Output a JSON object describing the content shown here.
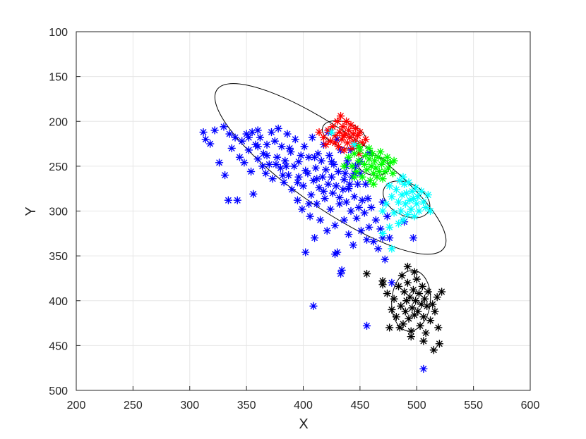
{
  "chart_data": {
    "type": "scatter",
    "title": "",
    "xlabel": "X",
    "ylabel": "Y",
    "xlim": [
      200,
      600
    ],
    "ylim": [
      100,
      500
    ],
    "y_reversed": true,
    "grid": true,
    "marker": "asterisk",
    "xticks": [
      200,
      250,
      300,
      350,
      400,
      450,
      500,
      550,
      600
    ],
    "yticks": [
      100,
      150,
      200,
      250,
      300,
      350,
      400,
      450,
      500
    ],
    "series": [
      {
        "color": "#0000ff",
        "points": [
          [
            312,
            212
          ],
          [
            314,
            220
          ],
          [
            318,
            225
          ],
          [
            322,
            210
          ],
          [
            326,
            246
          ],
          [
            330,
            206
          ],
          [
            331,
            260
          ],
          [
            334,
            288
          ],
          [
            335,
            214
          ],
          [
            337,
            230
          ],
          [
            340,
            218
          ],
          [
            342,
            288
          ],
          [
            344,
            240
          ],
          [
            346,
            222
          ],
          [
            348,
            246
          ],
          [
            350,
            214
          ],
          [
            352,
            232
          ],
          [
            354,
            256
          ],
          [
            355,
            212
          ],
          [
            356,
            281
          ],
          [
            358,
            226
          ],
          [
            360,
            242
          ],
          [
            362,
            218
          ],
          [
            364,
            250
          ],
          [
            365,
            236
          ],
          [
            367,
            258
          ],
          [
            368,
            226
          ],
          [
            370,
            248
          ],
          [
            372,
            212
          ],
          [
            373,
            264
          ],
          [
            375,
            222
          ],
          [
            377,
            240
          ],
          [
            378,
            208
          ],
          [
            380,
            252
          ],
          [
            381,
            228
          ],
          [
            383,
            268
          ],
          [
            384,
            244
          ],
          [
            386,
            214
          ],
          [
            387,
            260
          ],
          [
            389,
            234
          ],
          [
            390,
            276
          ],
          [
            392,
            250
          ],
          [
            393,
            220
          ],
          [
            395,
            288
          ],
          [
            396,
            262
          ],
          [
            398,
            238
          ],
          [
            399,
            298
          ],
          [
            400,
            272
          ],
          [
            401,
            228
          ],
          [
            402,
            346
          ],
          [
            404,
            258
          ],
          [
            405,
            240
          ],
          [
            406,
            306
          ],
          [
            407,
            282
          ],
          [
            408,
            218
          ],
          [
            409,
            266
          ],
          [
            410,
            330
          ],
          [
            411,
            252
          ],
          [
            412,
            292
          ],
          [
            413,
            236
          ],
          [
            414,
            274
          ],
          [
            415,
            310
          ],
          [
            416,
            244
          ],
          [
            417,
            262
          ],
          [
            418,
            226
          ],
          [
            419,
            286
          ],
          [
            420,
            254
          ],
          [
            421,
            322
          ],
          [
            422,
            270
          ],
          [
            423,
            238
          ],
          [
            424,
            298
          ],
          [
            425,
            262
          ],
          [
            426,
            280
          ],
          [
            427,
            248
          ],
          [
            428,
            316
          ],
          [
            429,
            272
          ],
          [
            430,
            346
          ],
          [
            431,
            256
          ],
          [
            432,
            292
          ],
          [
            433,
            232
          ],
          [
            434,
            366
          ],
          [
            435,
            276
          ],
          [
            436,
            310
          ],
          [
            437,
            258
          ],
          [
            438,
            290
          ],
          [
            439,
            244
          ],
          [
            440,
            326
          ],
          [
            441,
            270
          ],
          [
            442,
            300
          ],
          [
            443,
            262
          ],
          [
            444,
            338
          ],
          [
            445,
            284
          ],
          [
            446,
            250
          ],
          [
            447,
            308
          ],
          [
            448,
            270
          ],
          [
            449,
            296
          ],
          [
            450,
            258
          ],
          [
            451,
            322
          ],
          [
            452,
            288
          ],
          [
            454,
            302
          ],
          [
            455,
            270
          ],
          [
            456,
            332
          ],
          [
            457,
            286
          ],
          [
            458,
            318
          ],
          [
            460,
            296
          ],
          [
            462,
            334
          ],
          [
            464,
            310
          ],
          [
            466,
            342
          ],
          [
            468,
            320
          ],
          [
            470,
            290
          ],
          [
            472,
            354
          ],
          [
            474,
            306
          ],
          [
            476,
            330
          ],
          [
            478,
            380
          ],
          [
            470,
            330
          ],
          [
            445,
            258
          ],
          [
            438,
            250
          ],
          [
            425,
            245
          ],
          [
            432,
            285
          ],
          [
            418,
            278
          ],
          [
            410,
            240
          ],
          [
            402,
            255
          ],
          [
            396,
            245
          ],
          [
            388,
            230
          ],
          [
            382,
            260
          ],
          [
            376,
            248
          ],
          [
            368,
            238
          ],
          [
            360,
            228
          ],
          [
            352,
            218
          ],
          [
            428,
            348
          ],
          [
            433,
            370
          ],
          [
            409,
            406
          ],
          [
            456,
            428
          ],
          [
            506,
            476
          ],
          [
            489,
            312
          ],
          [
            497,
            330
          ],
          [
            436,
            265
          ],
          [
            442,
            232
          ],
          [
            430,
            220
          ],
          [
            422,
            212
          ],
          [
            458,
            235
          ],
          [
            450,
            245
          ],
          [
            440,
            275
          ],
          [
            412,
            264
          ],
          [
            405,
            292
          ],
          [
            395,
            268
          ],
          [
            385,
            250
          ],
          [
            360,
            210
          ]
        ]
      },
      {
        "color": "#ff0000",
        "points": [
          [
            414,
            212
          ],
          [
            418,
            218
          ],
          [
            420,
            226
          ],
          [
            422,
            210
          ],
          [
            424,
            222
          ],
          [
            426,
            206
          ],
          [
            428,
            216
          ],
          [
            430,
            200
          ],
          [
            431,
            228
          ],
          [
            432,
            212
          ],
          [
            433,
            194
          ],
          [
            434,
            220
          ],
          [
            435,
            206
          ],
          [
            436,
            232
          ],
          [
            437,
            214
          ],
          [
            438,
            200
          ],
          [
            439,
            224
          ],
          [
            440,
            210
          ],
          [
            441,
            218
          ],
          [
            442,
            204
          ],
          [
            443,
            230
          ],
          [
            444,
            214
          ],
          [
            445,
            222
          ],
          [
            446,
            208
          ],
          [
            447,
            226
          ],
          [
            448,
            216
          ],
          [
            449,
            236
          ],
          [
            450,
            212
          ],
          [
            452,
            224
          ],
          [
            455,
            220
          ],
          [
            436,
            216
          ],
          [
            428,
            224
          ]
        ]
      },
      {
        "color": "#00ff00",
        "points": [
          [
            440,
            240
          ],
          [
            443,
            250
          ],
          [
            445,
            236
          ],
          [
            447,
            256
          ],
          [
            449,
            244
          ],
          [
            450,
            232
          ],
          [
            452,
            262
          ],
          [
            454,
            248
          ],
          [
            455,
            238
          ],
          [
            456,
            254
          ],
          [
            458,
            242
          ],
          [
            459,
            266
          ],
          [
            460,
            250
          ],
          [
            461,
            236
          ],
          [
            462,
            258
          ],
          [
            463,
            244
          ],
          [
            464,
            252
          ],
          [
            465,
            262
          ],
          [
            466,
            240
          ],
          [
            467,
            256
          ],
          [
            468,
            234
          ],
          [
            469,
            248
          ],
          [
            470,
            264
          ],
          [
            471,
            244
          ],
          [
            472,
            256
          ],
          [
            474,
            240
          ],
          [
            475,
            252
          ],
          [
            477,
            246
          ],
          [
            479,
            258
          ],
          [
            480,
            244
          ],
          [
            458,
            230
          ],
          [
            462,
            270
          ],
          [
            449,
            228
          ],
          [
            436,
            250
          ],
          [
            445,
            262
          ]
        ]
      },
      {
        "color": "#00ffff",
        "points": [
          [
            470,
            300
          ],
          [
            473,
            292
          ],
          [
            476,
            272
          ],
          [
            478,
            284
          ],
          [
            480,
            302
          ],
          [
            482,
            276
          ],
          [
            484,
            290
          ],
          [
            485,
            266
          ],
          [
            486,
            300
          ],
          [
            487,
            282
          ],
          [
            488,
            310
          ],
          [
            489,
            270
          ],
          [
            490,
            292
          ],
          [
            491,
            280
          ],
          [
            492,
            304
          ],
          [
            493,
            268
          ],
          [
            494,
            288
          ],
          [
            495,
            298
          ],
          [
            496,
            278
          ],
          [
            497,
            286
          ],
          [
            498,
            306
          ],
          [
            499,
            274
          ],
          [
            500,
            292
          ],
          [
            501,
            284
          ],
          [
            502,
            300
          ],
          [
            504,
            278
          ],
          [
            506,
            290
          ],
          [
            508,
            296
          ],
          [
            510,
            282
          ],
          [
            512,
            300
          ],
          [
            488,
            262
          ],
          [
            478,
            342
          ],
          [
            470,
            325
          ],
          [
            425,
            212
          ],
          [
            445,
            226
          ],
          [
            476,
            318
          ],
          [
            484,
            314
          ]
        ]
      },
      {
        "color": "#000000",
        "points": [
          [
            456,
            370
          ],
          [
            470,
            378
          ],
          [
            474,
            392
          ],
          [
            476,
            430
          ],
          [
            480,
            398
          ],
          [
            482,
            418
          ],
          [
            484,
            384
          ],
          [
            486,
            406
          ],
          [
            487,
            372
          ],
          [
            488,
            426
          ],
          [
            489,
            390
          ],
          [
            490,
            412
          ],
          [
            491,
            400
          ],
          [
            492,
            380
          ],
          [
            493,
            420
          ],
          [
            494,
            396
          ],
          [
            495,
            434
          ],
          [
            496,
            408
          ],
          [
            497,
            388
          ],
          [
            498,
            416
          ],
          [
            499,
            400
          ],
          [
            500,
            376
          ],
          [
            501,
            412
          ],
          [
            502,
            392
          ],
          [
            503,
            428
          ],
          [
            504,
            404
          ],
          [
            505,
            384
          ],
          [
            506,
            418
          ],
          [
            507,
            398
          ],
          [
            508,
            436
          ],
          [
            509,
            406
          ],
          [
            510,
            390
          ],
          [
            512,
            422
          ],
          [
            514,
            404
          ],
          [
            516,
            412
          ],
          [
            518,
            396
          ],
          [
            519,
            430
          ],
          [
            520,
            448
          ],
          [
            522,
            390
          ],
          [
            478,
            410
          ],
          [
            485,
            430
          ],
          [
            492,
            362
          ],
          [
            498,
            368
          ],
          [
            506,
            445
          ],
          [
            515,
            455
          ],
          [
            470,
            382
          ],
          [
            495,
            440
          ]
        ]
      }
    ],
    "ellipses": [
      {
        "cx": 424,
        "cy": 253,
        "rx": 122,
        "ry": 43,
        "angle": 35
      },
      {
        "cx": 436,
        "cy": 215,
        "rx": 20,
        "ry": 14,
        "angle": 20
      },
      {
        "cx": 462,
        "cy": 249,
        "rx": 14,
        "ry": 11,
        "angle": 10
      },
      {
        "cx": 491,
        "cy": 287,
        "rx": 22,
        "ry": 18,
        "angle": 28
      },
      {
        "cx": 495,
        "cy": 400,
        "rx": 17,
        "ry": 34,
        "angle": 5
      }
    ]
  }
}
